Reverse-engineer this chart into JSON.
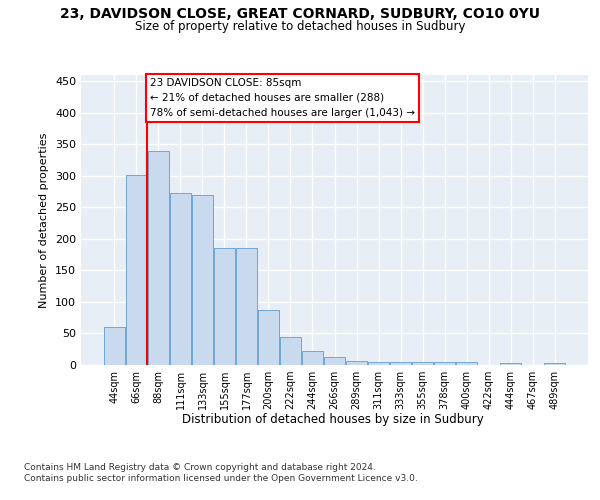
{
  "title_line1": "23, DAVIDSON CLOSE, GREAT CORNARD, SUDBURY, CO10 0YU",
  "title_line2": "Size of property relative to detached houses in Sudbury",
  "xlabel": "Distribution of detached houses by size in Sudbury",
  "ylabel": "Number of detached properties",
  "categories": [
    "44sqm",
    "66sqm",
    "88sqm",
    "111sqm",
    "133sqm",
    "155sqm",
    "177sqm",
    "200sqm",
    "222sqm",
    "244sqm",
    "266sqm",
    "289sqm",
    "311sqm",
    "333sqm",
    "355sqm",
    "378sqm",
    "400sqm",
    "422sqm",
    "444sqm",
    "467sqm",
    "489sqm"
  ],
  "values": [
    60,
    302,
    340,
    273,
    270,
    185,
    185,
    88,
    45,
    22,
    12,
    7,
    5,
    5,
    5,
    5,
    4,
    0,
    3,
    0,
    3
  ],
  "bar_color": "#c9d9ee",
  "bar_edge_color": "#6fa8d4",
  "red_line_x": 1.5,
  "annotation_text": "23 DAVIDSON CLOSE: 85sqm\n← 21% of detached houses are smaller (288)\n78% of semi-detached houses are larger (1,043) →",
  "ylim_max": 460,
  "yticks": [
    0,
    50,
    100,
    150,
    200,
    250,
    300,
    350,
    400,
    450
  ],
  "bg_color": "#e8eef5",
  "grid_color": "#ffffff",
  "footer1": "Contains HM Land Registry data © Crown copyright and database right 2024.",
  "footer2": "Contains public sector information licensed under the Open Government Licence v3.0."
}
